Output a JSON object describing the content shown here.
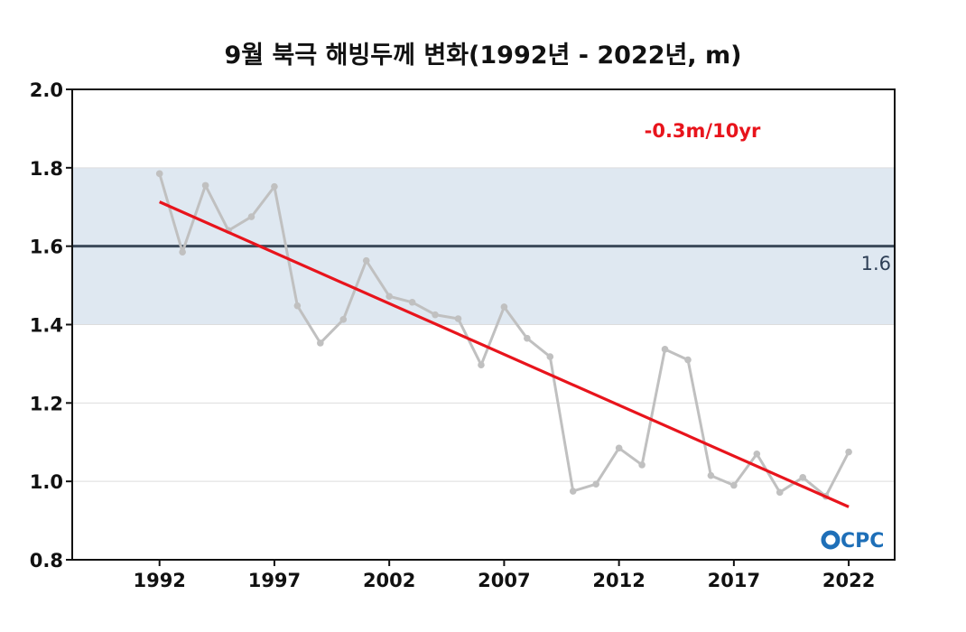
{
  "chart_data": {
    "type": "line",
    "title": "9월 북극 해빙두께 변화(1992년 - 2022년, m)",
    "xlabel": "",
    "ylabel": "",
    "xlim": [
      1988.2,
      2024.0
    ],
    "ylim": [
      0.8,
      2.0
    ],
    "x_ticks": [
      1992,
      1997,
      2002,
      2007,
      2012,
      2017,
      2022
    ],
    "y_ticks": [
      "0.8",
      "1.0",
      "1.2",
      "1.4",
      "1.6",
      "1.8",
      "2.0"
    ],
    "grid": "horizontal",
    "band": [
      1.4,
      1.8
    ],
    "reference_line": {
      "value": 1.6,
      "label": "1.6"
    },
    "trend": {
      "label": "-0.3m/10yr",
      "x": [
        1992,
        2022
      ],
      "y": [
        1.713,
        0.935
      ]
    },
    "series": [
      {
        "x": [
          1992,
          1993,
          1994,
          1995,
          1996,
          1997,
          1998,
          1999,
          2000,
          2001,
          2002,
          2003,
          2004,
          2005,
          2006,
          2007,
          2008,
          2009,
          2010,
          2011,
          2012,
          2013,
          2014,
          2015,
          2016,
          2017,
          2018,
          2019,
          2020,
          2021,
          2022
        ],
        "values": [
          1.785,
          1.585,
          1.755,
          1.64,
          1.675,
          1.752,
          1.448,
          1.353,
          1.413,
          1.563,
          1.472,
          1.457,
          1.425,
          1.415,
          1.297,
          1.445,
          1.365,
          1.318,
          0.975,
          0.993,
          1.085,
          1.042,
          1.337,
          1.31,
          1.015,
          0.99,
          1.07,
          0.972,
          1.01,
          0.962,
          1.075
        ]
      }
    ],
    "colors": {
      "series": "#c0c0c0",
      "trend": "#e8141c",
      "reference": "#3c4a5a",
      "band": "#dfe8f1",
      "grid": "#dddddd"
    },
    "logo": "CPC"
  }
}
